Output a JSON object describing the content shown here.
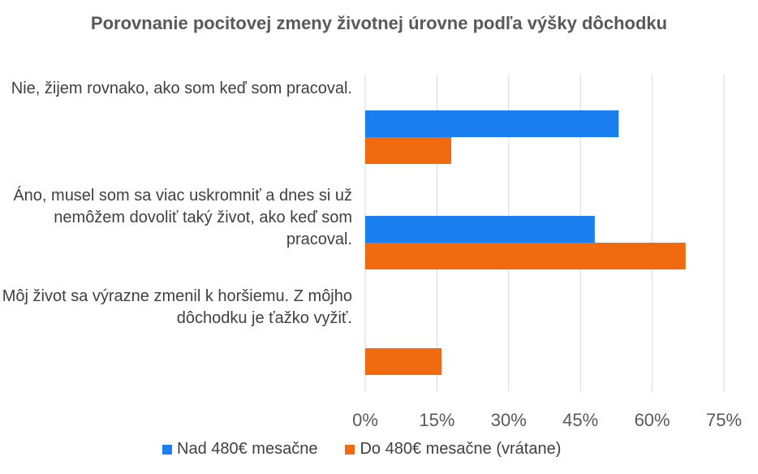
{
  "chart_data": {
    "type": "bar",
    "orientation": "horizontal",
    "title": "Porovnanie pocitovej zmeny životnej úrovne podľa výšky dôchodku",
    "categories": [
      "Nie, žijem rovnako, ako som keď som pracoval.",
      "Áno, musel som sa viac uskromniť a dnes si už nemôžem dovoliť taký život, ako keď som pracoval.",
      "Môj život sa výrazne zmenil k horšiemu. Z môjho dôchodku je ťažko vyžiť."
    ],
    "series": [
      {
        "name": "Nad 480€ mesačne",
        "color": "#1a7ff0",
        "values": [
          53,
          48,
          0
        ]
      },
      {
        "name": "Do 480€ mesačne (vrátane)",
        "color": "#f06a0f",
        "values": [
          18,
          67,
          16
        ]
      }
    ],
    "xlim": [
      0,
      75
    ],
    "ticks": [
      "0%",
      "15%",
      "30%",
      "45%",
      "60%",
      "75%"
    ],
    "tick_values": [
      0,
      15,
      30,
      45,
      60,
      75
    ],
    "grid": true,
    "legend_position": "bottom"
  }
}
